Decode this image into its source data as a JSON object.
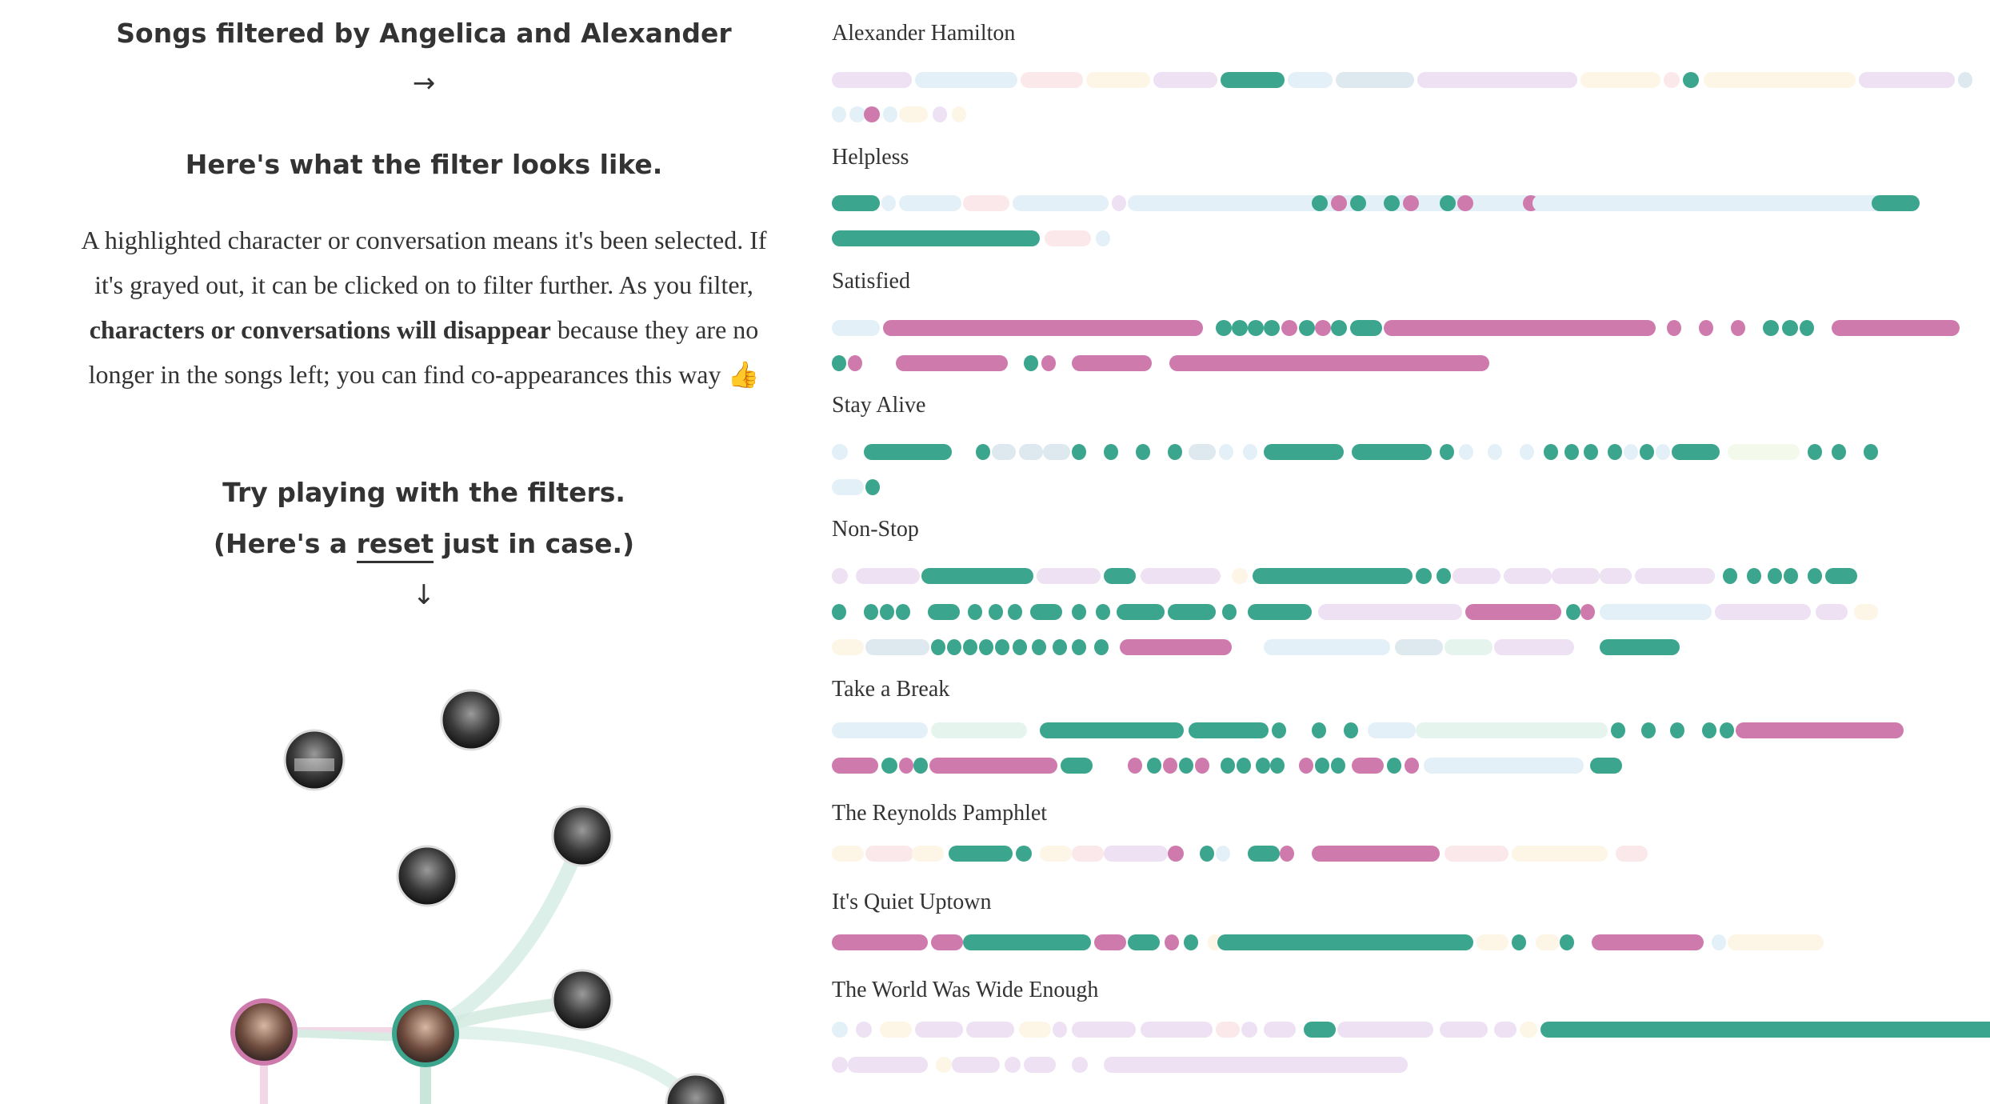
{
  "left": {
    "title": "Songs filtered by Angelica and Alexander",
    "arrow_right": "→",
    "filter_heading": "Here's what the filter looks like.",
    "paragraph": {
      "p1": "A highlighted character or conversation means it's been selected. If it's grayed out, it can be clicked on to filter further. As you filter, ",
      "bold": "characters or conversations will disappear",
      "p2": " because they are no longer in the songs left; you can find co-appearances this way ",
      "emoji": "👍"
    },
    "try_heading": "Try playing with the filters.",
    "reset_prefix": "(Here's a ",
    "reset_link": "reset",
    "reset_suffix": " just in case.)",
    "arrow_down": "↓"
  },
  "colors": {
    "alexander": "#3ba58d",
    "angelica": "#cf7aad",
    "faded": [
      "#e4f0f7",
      "#ede1f3",
      "#fbe8ea",
      "#fdf6e6",
      "#dde8ef",
      "#e6f4ee",
      "#f3f9eb"
    ]
  },
  "songs": [
    {
      "title": "Alexander Hamilton"
    },
    {
      "title": "Helpless"
    },
    {
      "title": "Satisfied"
    },
    {
      "title": "Stay Alive"
    },
    {
      "title": "Non-Stop"
    },
    {
      "title": "Take a Break"
    },
    {
      "title": "The Reynolds Pamphlet"
    },
    {
      "title": "It's Quiet Uptown"
    },
    {
      "title": "The World Was Wide Enough"
    }
  ]
}
